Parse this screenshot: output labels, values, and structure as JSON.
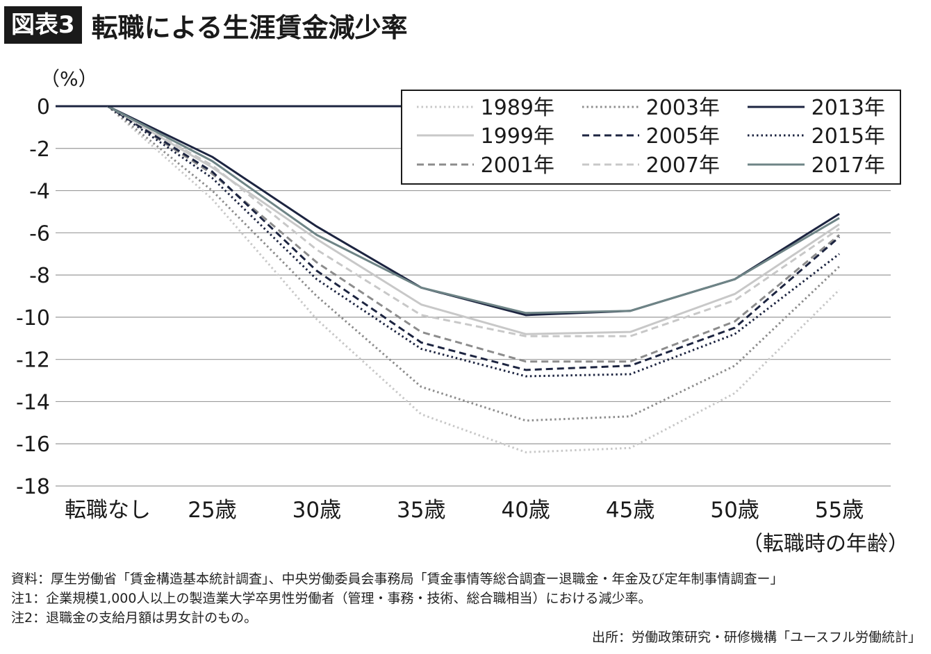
{
  "header": {
    "badge": "図表3",
    "title": "転職による生涯賃金減少率"
  },
  "notes": [
    "資料：厚生労働省「賃金構造基本統計調査」、中央労働委員会事務局「賃金事情等総合調査ー退職金・年金及び定年制事情調査ー」",
    "注1：企業規模1,000人以上の製造業大学卒男性労働者（管理・事務・技術、総合職相当）における減少率。",
    "注2：退職金の支給月額は男女計のもの。"
  ],
  "source": "出所：労働政策研究・研修機構「ユースフル労働統計」",
  "chart_data": {
    "type": "line",
    "title": "転職による生涯賃金減少率",
    "ylabel": "（%）",
    "xlabel": "（転職時の年齢）",
    "categories": [
      "転職なし",
      "25歳",
      "30歳",
      "35歳",
      "40歳",
      "45歳",
      "50歳",
      "55歳"
    ],
    "ylim": [
      -18,
      0
    ],
    "yticks": [
      0,
      -2,
      -4,
      -6,
      -8,
      -10,
      -12,
      -14,
      -16,
      -18
    ],
    "grid": true,
    "legend_position": "top-right",
    "series": [
      {
        "name": "1989年",
        "color": "#c8c8c8",
        "dash": "dot",
        "values": [
          0,
          -4.4,
          -10.1,
          -14.6,
          -16.4,
          -16.2,
          -13.6,
          -8.7
        ]
      },
      {
        "name": "1999年",
        "color": "#c8c8c8",
        "dash": "solid",
        "values": [
          0,
          -2.9,
          -6.3,
          -9.4,
          -10.8,
          -10.7,
          -8.9,
          -5.6
        ]
      },
      {
        "name": "2001年",
        "color": "#8c8c8c",
        "dash": "dash",
        "values": [
          0,
          -3.2,
          -7.4,
          -10.7,
          -12.1,
          -12.1,
          -10.2,
          -6.1
        ]
      },
      {
        "name": "2003年",
        "color": "#8c8c8c",
        "dash": "dot",
        "values": [
          0,
          -4.0,
          -9.0,
          -13.3,
          -14.9,
          -14.7,
          -12.3,
          -7.6
        ]
      },
      {
        "name": "2005年",
        "color": "#1c2440",
        "dash": "dash",
        "values": [
          0,
          -3.1,
          -7.8,
          -11.2,
          -12.5,
          -12.3,
          -10.5,
          -6.2
        ]
      },
      {
        "name": "2007年",
        "color": "#c8c8c8",
        "dash": "dash",
        "values": [
          0,
          -2.8,
          -6.8,
          -9.9,
          -10.9,
          -10.9,
          -9.2,
          -5.8
        ]
      },
      {
        "name": "2013年",
        "color": "#1c2440",
        "dash": "solid",
        "values": [
          0,
          -2.4,
          -5.7,
          -8.6,
          -9.9,
          -9.7,
          -8.2,
          -5.1
        ]
      },
      {
        "name": "2015年",
        "color": "#1c2440",
        "dash": "dot",
        "values": [
          0,
          -3.4,
          -8.2,
          -11.5,
          -12.8,
          -12.7,
          -10.8,
          -7.0
        ]
      },
      {
        "name": "2017年",
        "color": "#6e8486",
        "dash": "solid",
        "values": [
          0,
          -2.6,
          -6.1,
          -8.6,
          -9.8,
          -9.7,
          -8.2,
          -5.3
        ]
      }
    ]
  }
}
